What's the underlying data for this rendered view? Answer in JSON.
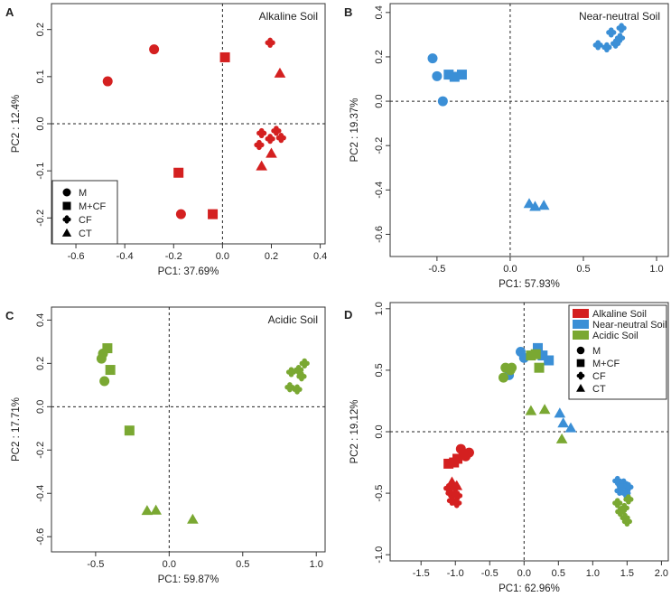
{
  "chart_data": [
    {
      "type": "scatter",
      "panel": "A",
      "title": "Alkaline Soil",
      "xlabel": "PC1: 37.69%",
      "ylabel": "PC2 : 12.4%",
      "xlim": [
        -0.7,
        0.42
      ],
      "ylim": [
        -0.255,
        0.255
      ],
      "xticks": [
        -0.6,
        -0.4,
        -0.2,
        0.0,
        0.2,
        0.4
      ],
      "yticks": [
        -0.2,
        -0.1,
        0.0,
        0.1,
        0.2
      ],
      "legend": {
        "position": "bottom-left",
        "entries": [
          {
            "label": "M",
            "shape": "circle"
          },
          {
            "label": "M+CF",
            "shape": "square"
          },
          {
            "label": "CF",
            "shape": "clover"
          },
          {
            "label": "CT",
            "shape": "triangle"
          }
        ]
      },
      "series": [
        {
          "name": "M",
          "shape": "circle",
          "color": "#d42020",
          "x": [
            -0.47,
            -0.28,
            -0.17
          ],
          "y": [
            0.09,
            0.158,
            -0.192
          ]
        },
        {
          "name": "M+CF",
          "shape": "square",
          "color": "#d42020",
          "x": [
            0.01,
            -0.18,
            -0.04
          ],
          "y": [
            0.141,
            -0.104,
            -0.192
          ]
        },
        {
          "name": "CF",
          "shape": "clover",
          "color": "#d42020",
          "x": [
            0.195,
            0.16,
            0.22,
            0.15,
            0.24,
            0.195
          ],
          "y": [
            0.172,
            -0.02,
            -0.015,
            -0.045,
            -0.03,
            -0.032
          ]
        },
        {
          "name": "CT",
          "shape": "triangle",
          "color": "#d42020",
          "x": [
            0.235,
            0.2,
            0.16
          ],
          "y": [
            0.107,
            -0.063,
            -0.09
          ]
        }
      ]
    },
    {
      "type": "scatter",
      "panel": "B",
      "title": "Near-neutral Soil",
      "xlabel": "PC1: 57.93%",
      "ylabel": "PC2 : 19.37%",
      "xlim": [
        -0.82,
        1.08
      ],
      "ylim": [
        -0.7,
        0.44
      ],
      "xticks": [
        -0.5,
        0.0,
        0.5,
        1.0
      ],
      "yticks": [
        -0.6,
        -0.4,
        -0.2,
        0.0,
        0.2,
        0.4
      ],
      "series": [
        {
          "name": "M",
          "shape": "circle",
          "color": "#3b8fd6",
          "x": [
            -0.53,
            -0.5,
            -0.46
          ],
          "y": [
            0.193,
            0.113,
            0.0
          ]
        },
        {
          "name": "M+CF",
          "shape": "square",
          "color": "#3b8fd6",
          "x": [
            -0.42,
            -0.38,
            -0.33
          ],
          "y": [
            0.12,
            0.11,
            0.12
          ]
        },
        {
          "name": "CF",
          "shape": "clover",
          "color": "#3b8fd6",
          "x": [
            0.6,
            0.66,
            0.72,
            0.69,
            0.76,
            0.75
          ],
          "y": [
            0.253,
            0.243,
            0.26,
            0.31,
            0.33,
            0.285
          ]
        },
        {
          "name": "CT",
          "shape": "triangle",
          "color": "#3b8fd6",
          "x": [
            0.13,
            0.17,
            0.23
          ],
          "y": [
            -0.462,
            -0.475,
            -0.47
          ]
        }
      ]
    },
    {
      "type": "scatter",
      "panel": "C",
      "title": "Acidic Soil",
      "xlabel": "PC1: 59.87%",
      "ylabel": "PC2 : 17.71%",
      "xlim": [
        -0.8,
        1.06
      ],
      "ylim": [
        -0.67,
        0.46
      ],
      "xticks": [
        -0.5,
        0.0,
        0.5,
        1.0
      ],
      "yticks": [
        -0.6,
        -0.4,
        -0.2,
        0.0,
        0.2,
        0.4
      ],
      "series": [
        {
          "name": "M",
          "shape": "circle",
          "color": "#7aa832",
          "x": [
            -0.45,
            -0.46,
            -0.44
          ],
          "y": [
            0.245,
            0.222,
            0.118
          ]
        },
        {
          "name": "M+CF",
          "shape": "square",
          "color": "#7aa832",
          "x": [
            -0.42,
            -0.4,
            -0.27
          ],
          "y": [
            0.27,
            0.17,
            -0.11
          ]
        },
        {
          "name": "CF",
          "shape": "clover",
          "color": "#7aa832",
          "x": [
            0.83,
            0.88,
            0.92,
            0.82,
            0.87,
            0.9
          ],
          "y": [
            0.16,
            0.17,
            0.2,
            0.09,
            0.08,
            0.14
          ]
        },
        {
          "name": "CT",
          "shape": "triangle",
          "color": "#7aa832",
          "x": [
            -0.15,
            -0.09,
            0.16
          ],
          "y": [
            -0.48,
            -0.478,
            -0.52
          ]
        }
      ]
    },
    {
      "type": "scatter",
      "panel": "D",
      "title": "",
      "xlabel": "PC1: 62.96%",
      "ylabel": "PC2 : 19.12%",
      "xlim": [
        -1.95,
        2.1
      ],
      "ylim": [
        -1.05,
        1.05
      ],
      "xticks": [
        -1.5,
        -1.0,
        -0.5,
        0.0,
        0.5,
        1.0,
        1.5,
        2.0
      ],
      "yticks": [
        -1.0,
        -0.5,
        0.0,
        0.5,
        1.0
      ],
      "legend": {
        "position": "top-right",
        "colors": [
          {
            "label": "Alkaline Soil",
            "color": "#d42020"
          },
          {
            "label": "Near-neutral Soil",
            "color": "#3b8fd6"
          },
          {
            "label": "Acidic Soil",
            "color": "#7aa832"
          }
        ],
        "shapes": [
          {
            "label": "M",
            "shape": "circle"
          },
          {
            "label": "M+CF",
            "shape": "square"
          },
          {
            "label": "CF",
            "shape": "clover"
          },
          {
            "label": "CT",
            "shape": "triangle"
          }
        ]
      },
      "series": [
        {
          "name": "Alkaline M",
          "shape": "circle",
          "color": "#d42020",
          "x": [
            -0.92,
            -0.88,
            -0.8,
            -0.85
          ],
          "y": [
            -0.14,
            -0.18,
            -0.17,
            -0.2
          ]
        },
        {
          "name": "Alkaline M+CF",
          "shape": "square",
          "color": "#d42020",
          "x": [
            -1.1,
            -1.02,
            -0.97
          ],
          "y": [
            -0.26,
            -0.25,
            -0.22
          ]
        },
        {
          "name": "Alkaline CF",
          "shape": "clover",
          "color": "#d42020",
          "x": [
            -1.1,
            -1.0,
            -1.07,
            -0.97,
            -1.05,
            -0.98
          ],
          "y": [
            -0.46,
            -0.45,
            -0.5,
            -0.52,
            -0.56,
            -0.58
          ]
        },
        {
          "name": "Alkaline CT",
          "shape": "triangle",
          "color": "#d42020",
          "x": [
            -1.05,
            -1.0,
            -0.98
          ],
          "y": [
            -0.41,
            -0.5,
            -0.44
          ]
        },
        {
          "name": "Near-neutral M",
          "shape": "circle",
          "color": "#3b8fd6",
          "x": [
            -0.05,
            0.0,
            -0.22
          ],
          "y": [
            0.65,
            0.6,
            0.46
          ]
        },
        {
          "name": "Near-neutral M+CF",
          "shape": "square",
          "color": "#3b8fd6",
          "x": [
            0.2,
            0.36,
            0.27
          ],
          "y": [
            0.68,
            0.58,
            0.62
          ]
        },
        {
          "name": "Near-neutral CF",
          "shape": "clover",
          "color": "#3b8fd6",
          "x": [
            1.36,
            1.45,
            1.52,
            1.39,
            1.48,
            1.42
          ],
          "y": [
            -0.4,
            -0.42,
            -0.45,
            -0.48,
            -0.5,
            -0.44
          ]
        },
        {
          "name": "Near-neutral CT",
          "shape": "triangle",
          "color": "#3b8fd6",
          "x": [
            0.52,
            0.57,
            0.68
          ],
          "y": [
            0.15,
            0.07,
            0.03
          ]
        },
        {
          "name": "Acidic M",
          "shape": "circle",
          "color": "#7aa832",
          "x": [
            -0.27,
            -0.2,
            -0.18,
            -0.3
          ],
          "y": [
            0.52,
            0.5,
            0.52,
            0.44
          ]
        },
        {
          "name": "Acidic M+CF",
          "shape": "square",
          "color": "#7aa832",
          "x": [
            0.1,
            0.17,
            0.22
          ],
          "y": [
            0.62,
            0.63,
            0.52
          ]
        },
        {
          "name": "Acidic CF",
          "shape": "clover",
          "color": "#7aa832",
          "x": [
            1.36,
            1.46,
            1.52,
            1.4,
            1.47,
            1.5
          ],
          "y": [
            -0.58,
            -0.62,
            -0.55,
            -0.65,
            -0.7,
            -0.73
          ]
        },
        {
          "name": "Acidic CT",
          "shape": "triangle",
          "color": "#7aa832",
          "x": [
            0.1,
            0.3,
            0.55
          ],
          "y": [
            0.17,
            0.18,
            -0.06
          ]
        }
      ]
    }
  ]
}
